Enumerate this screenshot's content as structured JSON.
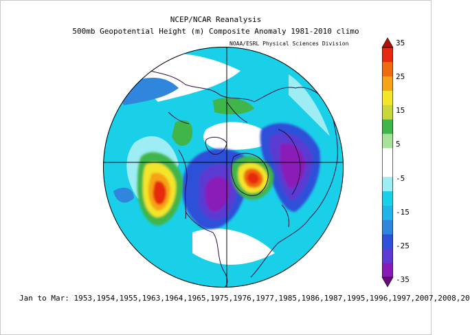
{
  "header": {
    "title": "NCEP/NCAR Reanalysis",
    "subtitle": "500mb Geopotential Height (m) Composite Anomaly 1981-2010 climo",
    "credit": "NOAA/ESRL Physical Sciences Division"
  },
  "colorbar": {
    "ticks": [
      "35",
      "25",
      "15",
      "5",
      "-5",
      "-15",
      "-25",
      "-35"
    ],
    "colors": [
      "#6a0a7a",
      "#8a1ab8",
      "#5a3ad2",
      "#2f4fd8",
      "#2f86dc",
      "#1fb5e8",
      "#1ad0e8",
      "#9eecf4",
      "#ffffff",
      "#ffffff",
      "#a8e29a",
      "#3fb54a",
      "#c8d83a",
      "#f3e52a",
      "#f6a316",
      "#f06a10",
      "#e62a10",
      "#b01208"
    ]
  },
  "footer": {
    "text": "Jan to Mar: 1953,1954,1955,1963,1964,1965,1975,1976,1977,1985,1986,1987,1995,1996,1997,2007,2008,20"
  },
  "map": {
    "projection": "north-polar-stereographic",
    "background_anomaly_color": "#1ad0e8",
    "features": [
      {
        "name": "positive-anomaly-north-pacific",
        "sign": "positive",
        "peak": 30
      },
      {
        "name": "positive-anomaly-greenland",
        "sign": "positive",
        "peak": 25
      },
      {
        "name": "negative-anomaly-north-america",
        "sign": "negative",
        "peak": -25
      },
      {
        "name": "negative-anomaly-europe-siberia",
        "sign": "negative",
        "peak": -25
      }
    ]
  }
}
